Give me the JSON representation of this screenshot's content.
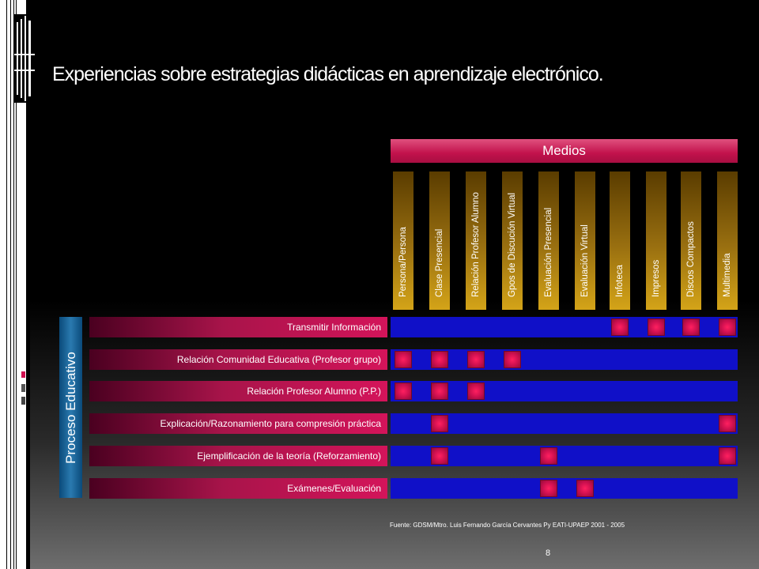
{
  "title": "Experiencias sobre estrategias didácticas en aprendizaje electrónico.",
  "medios_label": "Medios",
  "medios_columns": [
    "Persona/Persona",
    "Clase Presencial",
    "Relación Profesor Alumno",
    "Gpos de Discución Virtual",
    "Evaluación Presencial",
    "Evaluación Virtual",
    "Infoteca",
    "Impresos",
    "Discos Compactos",
    "Multimedia"
  ],
  "proceso_label": "Proceso Educativo",
  "rows": [
    {
      "label": "Transmitir Información",
      "marked": [
        6,
        7,
        8,
        9
      ]
    },
    {
      "label": "Relación Comunidad Educativa (Profesor grupo)",
      "marked": [
        0,
        1,
        2,
        3
      ]
    },
    {
      "label": "Relación Profesor Alumno (P.P.)",
      "marked": [
        0,
        1,
        2
      ]
    },
    {
      "label": "Explicación/Razonamiento para compresión práctica",
      "marked": [
        1,
        9
      ]
    },
    {
      "label": "Ejemplificación de la teoría (Reforzamiento)",
      "marked": [
        1,
        4,
        9
      ]
    },
    {
      "label": "Exámenes/Evaluación",
      "marked": [
        4,
        5
      ]
    }
  ],
  "source": "Fuente: GDSM/Mtro. Luis Fernando García Cervantes Py EATI-UPAEP 2001 - 2005",
  "page_number": "8",
  "colors": {
    "medios_bar": "#c2124c",
    "cell_mark": "#ff2060",
    "row_bar": "#1010c8",
    "proceso_bar": "#2a7ab0",
    "column_gold": "#d4a418"
  }
}
